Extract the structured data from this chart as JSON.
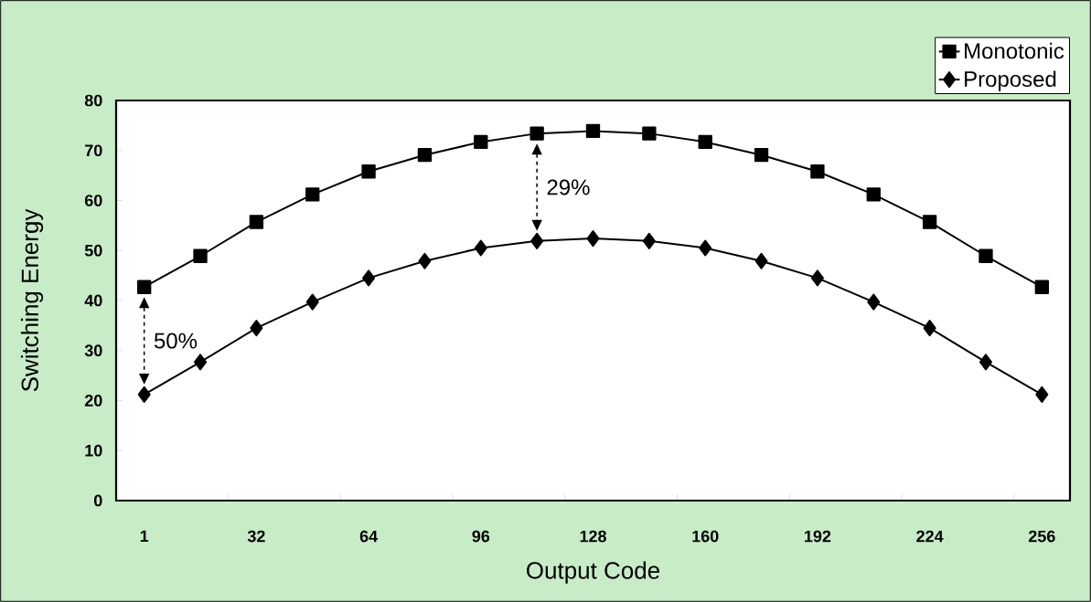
{
  "chart_data": {
    "type": "line",
    "xlabel": "Output Code",
    "ylabel": "Switching Energy",
    "categories": [
      "1",
      null,
      "32",
      null,
      "64",
      null,
      "96",
      null,
      "128",
      null,
      "160",
      null,
      "192",
      null,
      "224",
      null,
      "256"
    ],
    "series": [
      {
        "name": "Monotonic",
        "color": "#000000",
        "marker": "square",
        "values": [
          42.7,
          48.9,
          55.7,
          61.2,
          65.8,
          69.1,
          71.7,
          73.4,
          73.9,
          73.4,
          71.7,
          69.1,
          65.8,
          61.2,
          55.7,
          48.9,
          42.7
        ]
      },
      {
        "name": "Proposed",
        "color": "#000000",
        "marker": "diamond",
        "values": [
          21.2,
          27.7,
          34.5,
          39.7,
          44.5,
          47.9,
          50.5,
          51.9,
          52.4,
          51.9,
          50.5,
          47.9,
          44.5,
          39.7,
          34.5,
          27.7,
          21.2
        ]
      }
    ],
    "ylim": [
      0,
      80
    ],
    "yticks": [
      0,
      10,
      20,
      30,
      40,
      50,
      60,
      70,
      80
    ],
    "legend": "top right",
    "line_style": "solid",
    "annotations": [
      "50%",
      "29%"
    ]
  }
}
